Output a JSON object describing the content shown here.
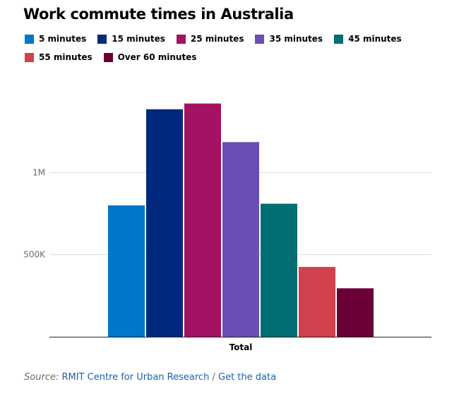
{
  "title": "Work commute times in Australia",
  "chart_data": {
    "type": "bar",
    "categories": [
      "Total"
    ],
    "series": [
      {
        "name": "5 minutes",
        "values": [
          800000
        ],
        "color": "#0077c8"
      },
      {
        "name": "15 minutes",
        "values": [
          1385000
        ],
        "color": "#00297e"
      },
      {
        "name": "25 minutes",
        "values": [
          1420000
        ],
        "color": "#a31263"
      },
      {
        "name": "35 minutes",
        "values": [
          1185000
        ],
        "color": "#6a4eb4"
      },
      {
        "name": "45 minutes",
        "values": [
          810000
        ],
        "color": "#006e73"
      },
      {
        "name": "55 minutes",
        "values": [
          425000
        ],
        "color": "#d1414e"
      },
      {
        "name": "Over 60 minutes",
        "values": [
          295000
        ],
        "color": "#6b0037"
      }
    ],
    "yticks": [
      {
        "value": 500000,
        "label": "500K"
      },
      {
        "value": 1000000,
        "label": "1M"
      }
    ],
    "ylim": [
      0,
      1500000
    ],
    "grid": true,
    "legend": "top-left",
    "xlabel": "",
    "ylabel": ""
  },
  "source": {
    "label": "Source:",
    "org": "RMIT Centre for Urban Research",
    "separator": "/",
    "data_link": "Get the data"
  }
}
